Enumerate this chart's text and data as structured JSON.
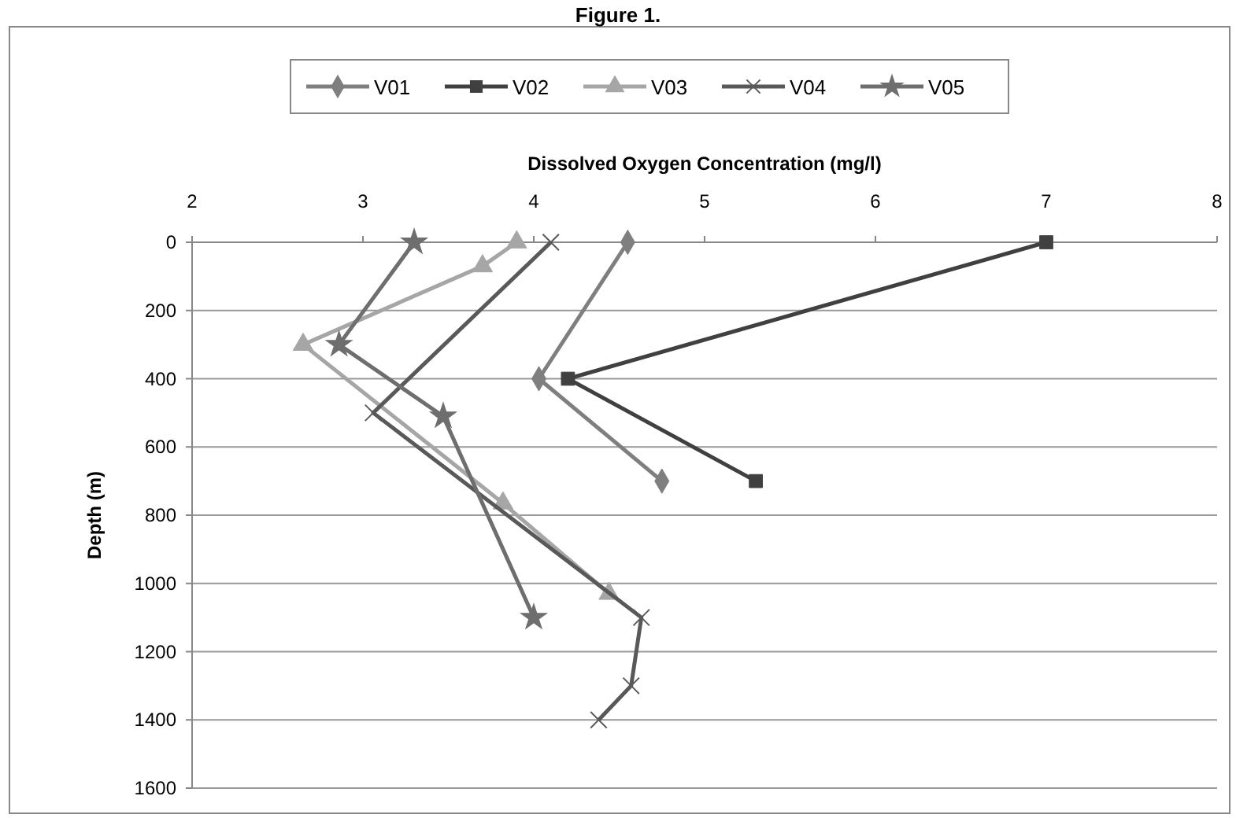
{
  "chart_data": {
    "type": "line",
    "title": "Figure 1.",
    "xlabel": "Dissolved Oxygen Concentration (mg/l)",
    "ylabel": "Depth (m)",
    "xlim": [
      2,
      8
    ],
    "xticks": [
      2,
      3,
      4,
      5,
      6,
      7,
      8
    ],
    "ylim": [
      1600,
      0
    ],
    "yticks": [
      0,
      200,
      400,
      600,
      800,
      1000,
      1200,
      1400,
      1600
    ],
    "grid": "y",
    "legend": "top",
    "line_style": "solid",
    "series": [
      {
        "name": "V01",
        "color": "#7f7f7f",
        "marker": "diamond",
        "x": [
          4.55,
          4.03,
          4.75
        ],
        "values": [
          0,
          400,
          700
        ]
      },
      {
        "name": "V02",
        "color": "#404040",
        "marker": "square",
        "x": [
          7.0,
          4.2,
          5.3
        ],
        "values": [
          0,
          400,
          700
        ]
      },
      {
        "name": "V03",
        "color": "#a6a6a6",
        "marker": "triangle",
        "x": [
          3.9,
          3.7,
          2.65,
          3.82,
          4.44
        ],
        "values": [
          0,
          70,
          300,
          765,
          1030
        ]
      },
      {
        "name": "V04",
        "color": "#595959",
        "marker": "cross",
        "x": [
          4.1,
          3.06,
          4.63,
          4.57,
          4.38
        ],
        "values": [
          0,
          500,
          1100,
          1300,
          1400
        ]
      },
      {
        "name": "V05",
        "color": "#6e6e6e",
        "marker": "star",
        "x": [
          3.3,
          2.86,
          3.47,
          4.0
        ],
        "values": [
          0,
          300,
          510,
          1100
        ]
      }
    ]
  }
}
